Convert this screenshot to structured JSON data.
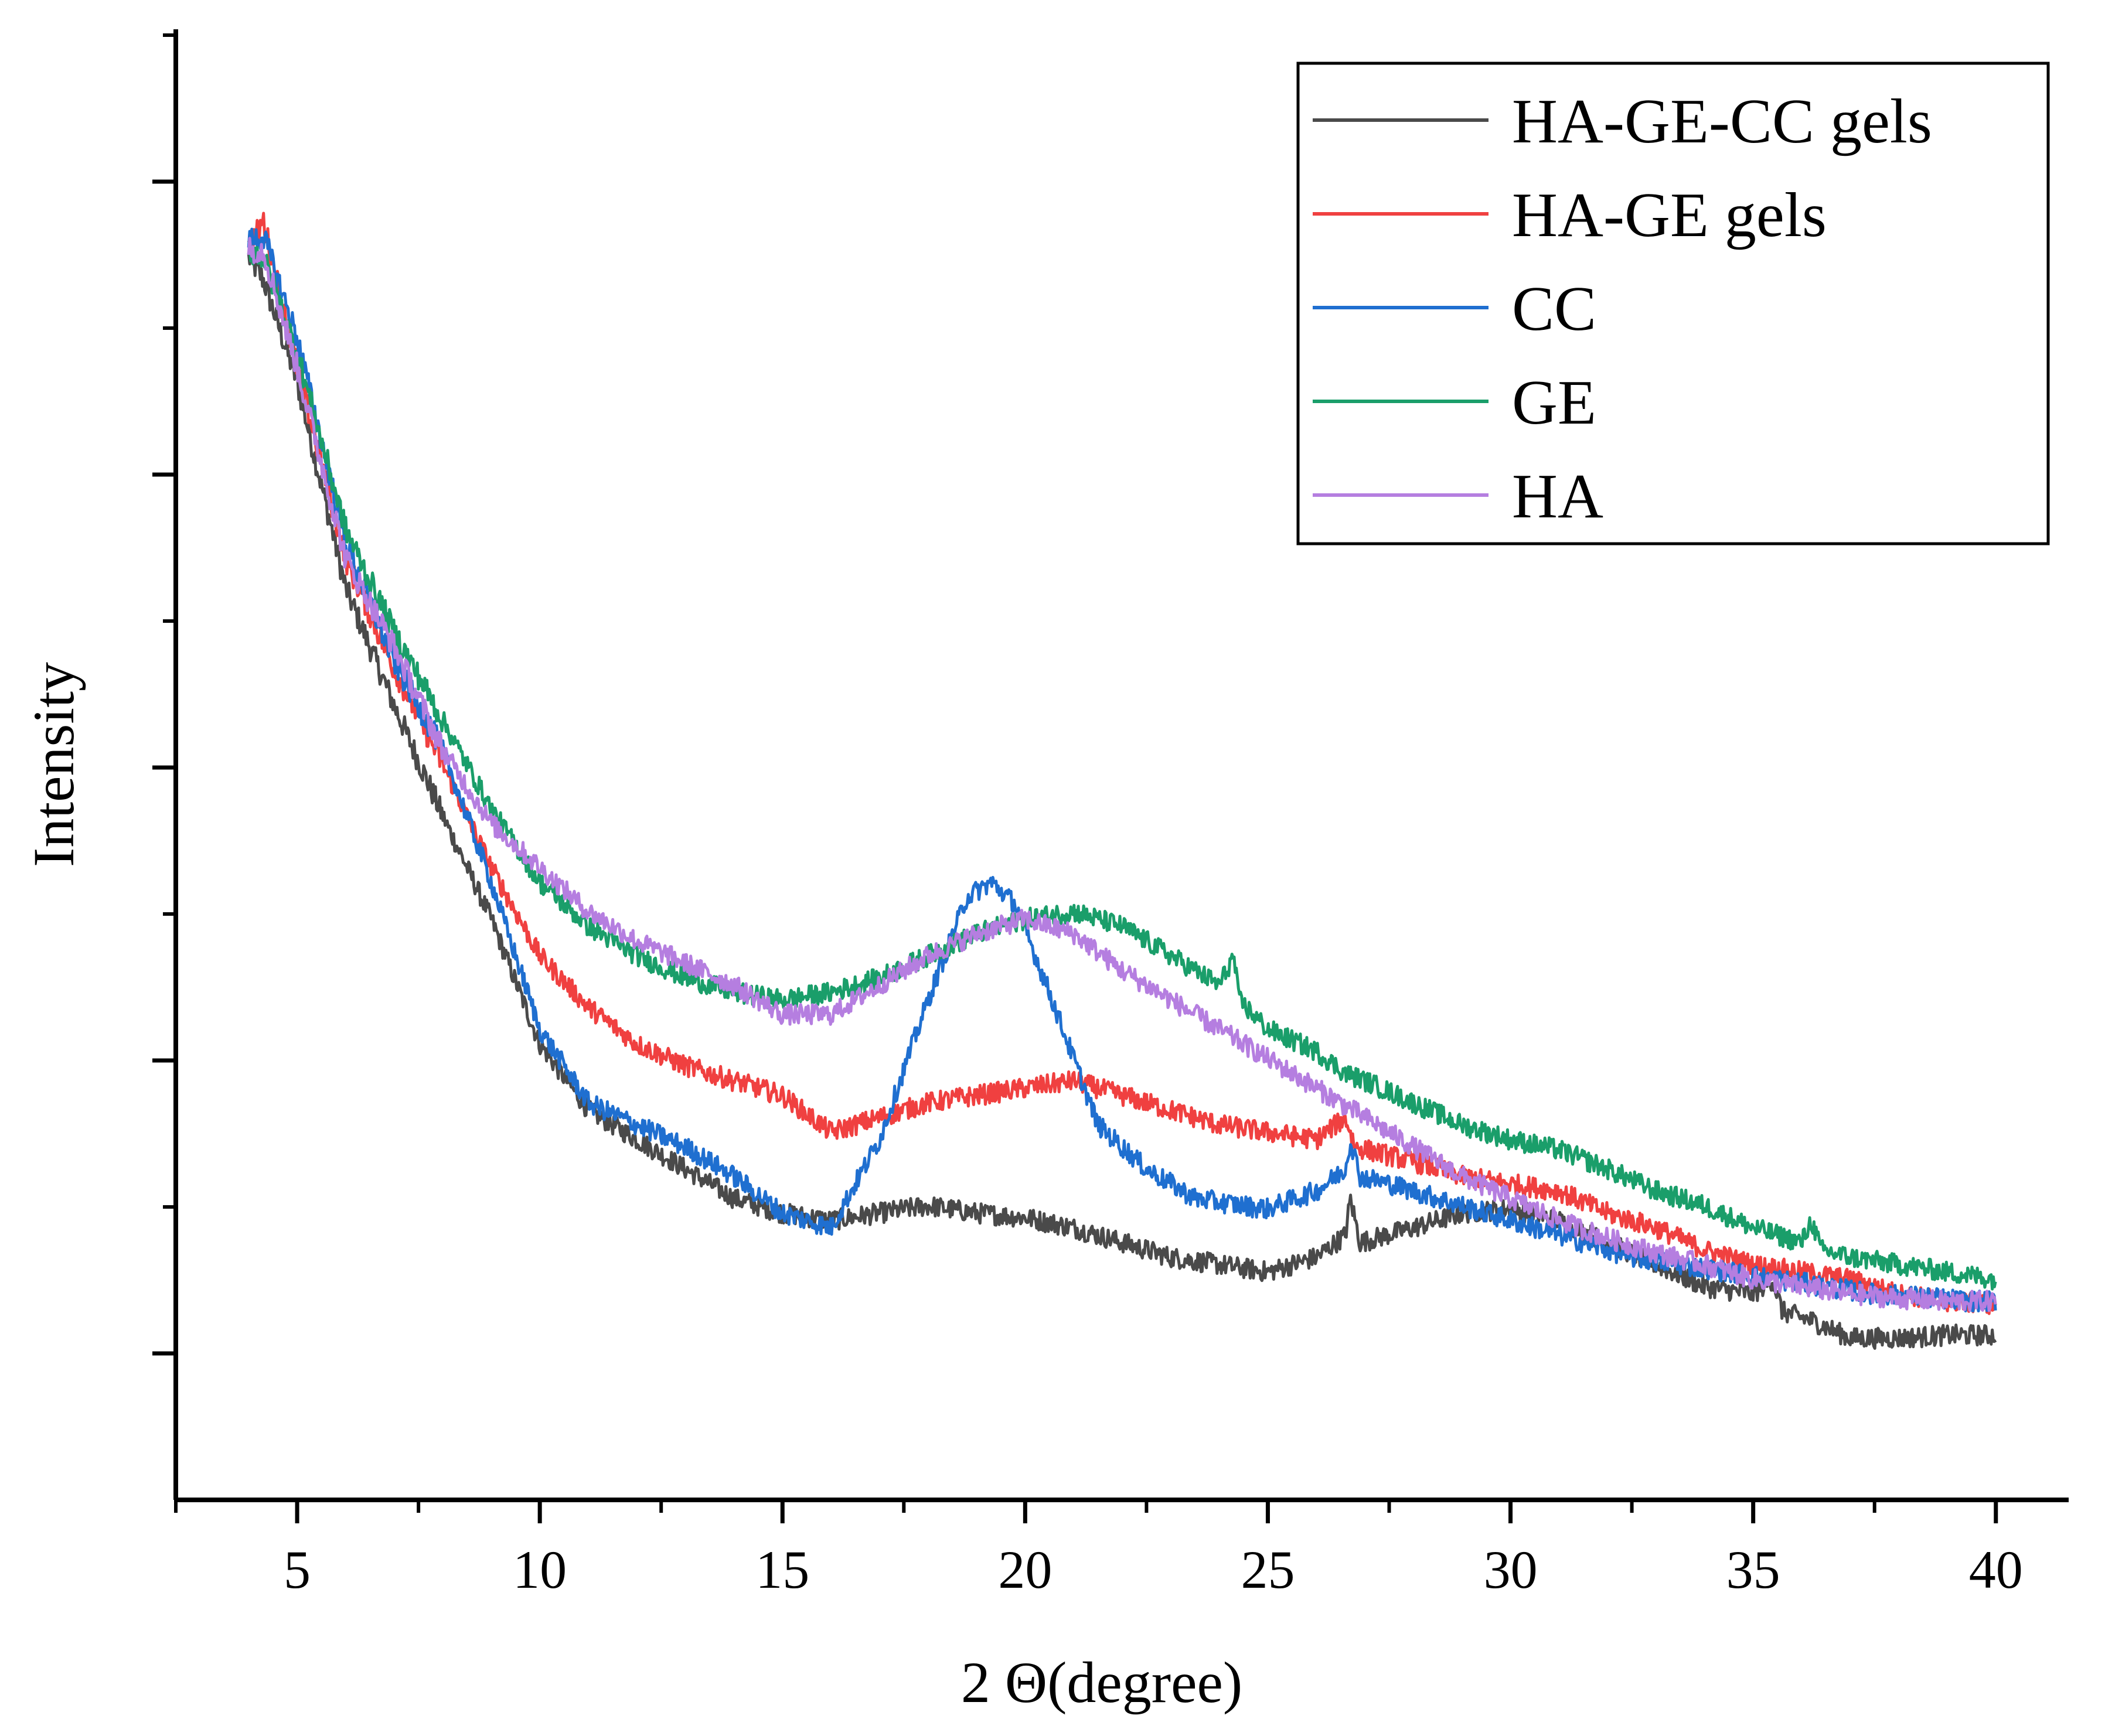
{
  "chart_data": {
    "type": "line",
    "title": "",
    "xlabel": "2 Θ(degree)",
    "ylabel": "Intensity",
    "xlim": [
      2.5,
      41.5
    ],
    "ylim": [
      0,
      1000
    ],
    "x_ticks": [
      "5",
      "10",
      "15",
      "20",
      "25",
      "30",
      "35",
      "40"
    ],
    "y_tick_labels_shown": false,
    "legend_position": "top-right",
    "series": [
      {
        "name": "HA-GE-CC gels",
        "color": "#4a4a4a",
        "points": [
          [
            4.0,
            845
          ],
          [
            4.3,
            830
          ],
          [
            5.0,
            760
          ],
          [
            6.0,
            620
          ],
          [
            7.0,
            540
          ],
          [
            8.0,
            465
          ],
          [
            9.0,
            395
          ],
          [
            10.0,
            310
          ],
          [
            11.0,
            265
          ],
          [
            12.0,
            245
          ],
          [
            13.0,
            225
          ],
          [
            14.0,
            205
          ],
          [
            15.0,
            195
          ],
          [
            16.0,
            190
          ],
          [
            17.0,
            195
          ],
          [
            18.0,
            200
          ],
          [
            19.0,
            195
          ],
          [
            20.0,
            192
          ],
          [
            21.0,
            185
          ],
          [
            22.0,
            175
          ],
          [
            23.0,
            165
          ],
          [
            24.0,
            160
          ],
          [
            25.0,
            155
          ],
          [
            26.0,
            165
          ],
          [
            26.6,
            180
          ],
          [
            26.7,
            205
          ],
          [
            26.9,
            175
          ],
          [
            28.0,
            185
          ],
          [
            29.0,
            195
          ],
          [
            30.0,
            198
          ],
          [
            31.0,
            190
          ],
          [
            32.0,
            175
          ],
          [
            33.0,
            160
          ],
          [
            34.0,
            145
          ],
          [
            35.0,
            140
          ],
          [
            35.4,
            150
          ],
          [
            35.6,
            128
          ],
          [
            36.2,
            122
          ],
          [
            37.0,
            110
          ],
          [
            38.0,
            110
          ],
          [
            39.0,
            112
          ],
          [
            40.0,
            112
          ]
        ]
      },
      {
        "name": "HA-GE gels",
        "color": "#f04040",
        "points": [
          [
            4.0,
            850
          ],
          [
            4.3,
            870
          ],
          [
            5.0,
            770
          ],
          [
            6.0,
            640
          ],
          [
            7.0,
            565
          ],
          [
            8.0,
            500
          ],
          [
            9.0,
            430
          ],
          [
            10.0,
            370
          ],
          [
            11.0,
            335
          ],
          [
            12.0,
            310
          ],
          [
            13.0,
            295
          ],
          [
            14.0,
            285
          ],
          [
            15.0,
            275
          ],
          [
            16.0,
            250
          ],
          [
            17.0,
            260
          ],
          [
            18.0,
            270
          ],
          [
            19.0,
            275
          ],
          [
            20.0,
            280
          ],
          [
            21.0,
            285
          ],
          [
            22.0,
            275
          ],
          [
            23.0,
            265
          ],
          [
            24.0,
            255
          ],
          [
            25.0,
            250
          ],
          [
            26.0,
            245
          ],
          [
            26.6,
            260
          ],
          [
            26.8,
            240
          ],
          [
            28.0,
            230
          ],
          [
            29.0,
            220
          ],
          [
            30.0,
            215
          ],
          [
            31.0,
            210
          ],
          [
            32.0,
            195
          ],
          [
            33.0,
            185
          ],
          [
            34.0,
            170
          ],
          [
            35.0,
            160
          ],
          [
            36.0,
            155
          ],
          [
            37.0,
            150
          ],
          [
            38.0,
            140
          ],
          [
            39.0,
            135
          ],
          [
            40.0,
            133
          ]
        ]
      },
      {
        "name": "CC",
        "color": "#1f6fd0",
        "points": [
          [
            4.0,
            855
          ],
          [
            4.3,
            860
          ],
          [
            5.0,
            790
          ],
          [
            6.0,
            650
          ],
          [
            7.0,
            570
          ],
          [
            8.0,
            510
          ],
          [
            9.0,
            420
          ],
          [
            10.0,
            320
          ],
          [
            11.0,
            270
          ],
          [
            12.0,
            255
          ],
          [
            13.0,
            240
          ],
          [
            14.0,
            220
          ],
          [
            15.0,
            195
          ],
          [
            16.0,
            185
          ],
          [
            17.0,
            245
          ],
          [
            18.0,
            340
          ],
          [
            18.8,
            410
          ],
          [
            19.3,
            420
          ],
          [
            19.8,
            405
          ],
          [
            20.5,
            345
          ],
          [
            21.5,
            255
          ],
          [
            22.5,
            225
          ],
          [
            23.5,
            205
          ],
          [
            24.5,
            200
          ],
          [
            25.0,
            198
          ],
          [
            26.0,
            210
          ],
          [
            26.6,
            225
          ],
          [
            26.7,
            245
          ],
          [
            26.9,
            220
          ],
          [
            27.5,
            215
          ],
          [
            28.5,
            205
          ],
          [
            29.5,
            195
          ],
          [
            30.5,
            185
          ],
          [
            31.5,
            175
          ],
          [
            32.5,
            165
          ],
          [
            33.5,
            160
          ],
          [
            34.5,
            155
          ],
          [
            35.5,
            150
          ],
          [
            36.5,
            145
          ],
          [
            37.5,
            140
          ],
          [
            38.5,
            138
          ],
          [
            39.5,
            135
          ],
          [
            40.0,
            135
          ]
        ]
      },
      {
        "name": "GE",
        "color": "#1a9e6a",
        "points": [
          [
            4.0,
            850
          ],
          [
            4.3,
            845
          ],
          [
            5.0,
            780
          ],
          [
            6.0,
            660
          ],
          [
            7.0,
            590
          ],
          [
            8.0,
            530
          ],
          [
            9.0,
            470
          ],
          [
            10.0,
            420
          ],
          [
            11.0,
            390
          ],
          [
            12.0,
            370
          ],
          [
            13.0,
            355
          ],
          [
            14.0,
            345
          ],
          [
            15.0,
            340
          ],
          [
            16.0,
            345
          ],
          [
            17.0,
            355
          ],
          [
            18.0,
            370
          ],
          [
            19.0,
            385
          ],
          [
            20.0,
            395
          ],
          [
            21.0,
            400
          ],
          [
            22.0,
            390
          ],
          [
            23.0,
            370
          ],
          [
            24.0,
            350
          ],
          [
            24.3,
            370
          ],
          [
            24.4,
            340
          ],
          [
            25.0,
            320
          ],
          [
            26.0,
            305
          ],
          [
            26.6,
            290
          ],
          [
            27.0,
            285
          ],
          [
            28.0,
            270
          ],
          [
            29.0,
            255
          ],
          [
            30.0,
            245
          ],
          [
            31.0,
            238
          ],
          [
            32.0,
            225
          ],
          [
            33.0,
            210
          ],
          [
            34.0,
            200
          ],
          [
            35.0,
            185
          ],
          [
            36.0,
            175
          ],
          [
            36.2,
            190
          ],
          [
            36.4,
            170
          ],
          [
            37.0,
            165
          ],
          [
            38.0,
            160
          ],
          [
            39.0,
            155
          ],
          [
            40.0,
            150
          ]
        ]
      },
      {
        "name": "HA",
        "color": "#b57ee0",
        "points": [
          [
            4.0,
            850
          ],
          [
            4.3,
            850
          ],
          [
            5.0,
            770
          ],
          [
            6.0,
            640
          ],
          [
            7.0,
            580
          ],
          [
            8.0,
            510
          ],
          [
            9.0,
            460
          ],
          [
            10.0,
            430
          ],
          [
            11.0,
            400
          ],
          [
            12.0,
            380
          ],
          [
            13.0,
            365
          ],
          [
            14.0,
            350
          ],
          [
            15.0,
            330
          ],
          [
            16.0,
            330
          ],
          [
            17.0,
            350
          ],
          [
            18.0,
            370
          ],
          [
            19.0,
            385
          ],
          [
            20.0,
            395
          ],
          [
            21.0,
            385
          ],
          [
            22.0,
            360
          ],
          [
            23.0,
            340
          ],
          [
            24.0,
            320
          ],
          [
            25.0,
            300
          ],
          [
            26.0,
            280
          ],
          [
            27.0,
            260
          ],
          [
            28.0,
            240
          ],
          [
            29.0,
            220
          ],
          [
            30.0,
            205
          ],
          [
            31.0,
            190
          ],
          [
            32.0,
            178
          ],
          [
            33.0,
            168
          ],
          [
            34.0,
            160
          ],
          [
            35.0,
            150
          ],
          [
            36.0,
            145
          ],
          [
            37.0,
            140
          ],
          [
            38.0,
            137
          ],
          [
            39.0,
            135
          ],
          [
            40.0,
            135
          ]
        ]
      }
    ]
  }
}
